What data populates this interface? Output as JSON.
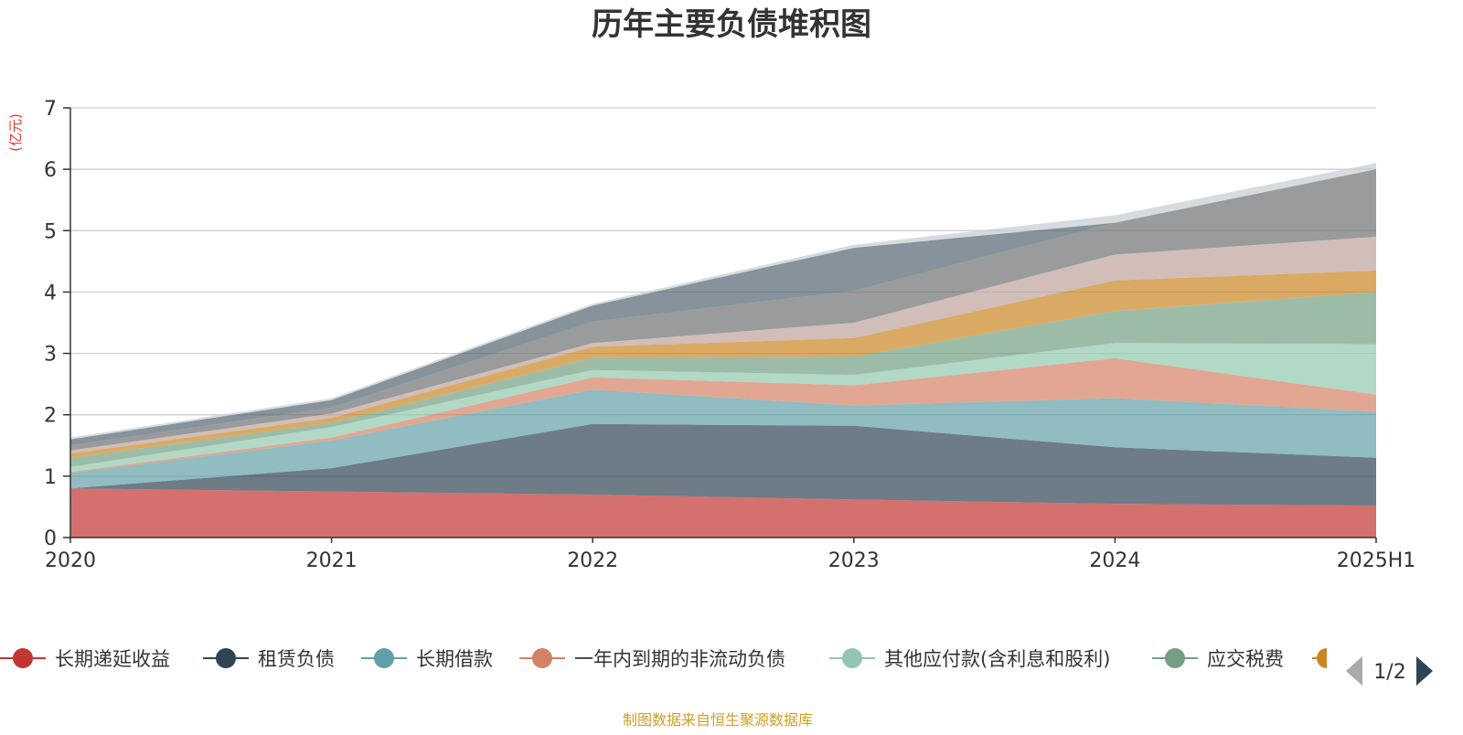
{
  "chart_data": {
    "type": "area",
    "title": "历年主要负债堆积图",
    "ylabel": "(亿元)",
    "ylim": [
      0,
      7
    ],
    "yticks": [
      0,
      1,
      2,
      3,
      4,
      5,
      6,
      7
    ],
    "categories": [
      "2020",
      "2021",
      "2022",
      "2023",
      "2024",
      "2025H1"
    ],
    "grid": true,
    "stacked": true,
    "series": [
      {
        "name": "长期递延收益",
        "color": "#c23531",
        "values": [
          0.8,
          0.75,
          0.7,
          0.62,
          0.55,
          0.52
        ]
      },
      {
        "name": "租赁负债",
        "color": "#2f4554",
        "values": [
          0.0,
          0.38,
          1.15,
          1.2,
          0.92,
          0.78
        ]
      },
      {
        "name": "长期借款",
        "color": "#61a0a8",
        "values": [
          0.25,
          0.45,
          0.56,
          0.33,
          0.8,
          0.75
        ]
      },
      {
        "name": "一年内到期的非流动负债",
        "color": "#d48265",
        "values": [
          0.02,
          0.05,
          0.2,
          0.33,
          0.65,
          0.28
        ]
      },
      {
        "name": "其他应付款(含利息和股利)",
        "color": "#91c7ae",
        "values": [
          0.08,
          0.17,
          0.12,
          0.17,
          0.25,
          0.82
        ]
      },
      {
        "name": "应交税费",
        "color": "#749f83",
        "values": [
          0.15,
          0.07,
          0.2,
          0.3,
          0.52,
          0.85
        ]
      },
      {
        "name": "",
        "color": "#ca8622",
        "values": [
          0.07,
          0.08,
          0.18,
          0.3,
          0.5,
          0.35
        ]
      },
      {
        "name": "",
        "color": "#bda29a",
        "values": [
          0.05,
          0.07,
          0.06,
          0.25,
          0.42,
          0.55
        ]
      },
      {
        "name": "",
        "color": "#6e7074",
        "values": [
          0.08,
          0.1,
          0.35,
          0.52,
          0.52,
          1.1
        ]
      },
      {
        "name": "",
        "color": "#546570",
        "values": [
          0.1,
          0.12,
          0.26,
          0.7,
          0.0,
          0.0
        ]
      },
      {
        "name": "",
        "color": "#c4ccd3",
        "values": [
          0.03,
          0.03,
          0.03,
          0.05,
          0.12,
          0.1
        ]
      }
    ],
    "legend": {
      "position": "bottom",
      "visible_items": [
        "长期递延收益",
        "租赁负债",
        "长期借款",
        "一年内到期的非流动负债",
        "其他应付款(含利息和股利)",
        "应交税费"
      ],
      "page": "1/2"
    },
    "source": "制图数据来自恒生聚源数据库"
  }
}
